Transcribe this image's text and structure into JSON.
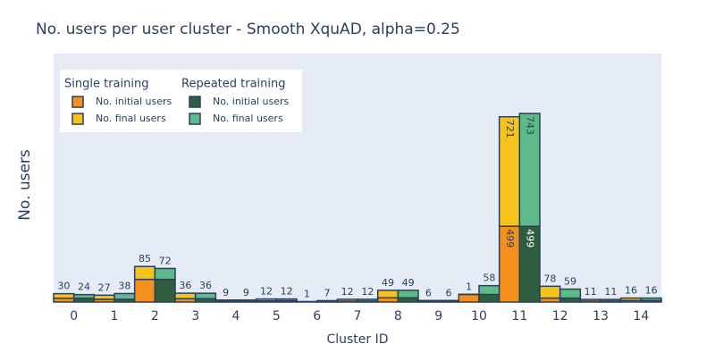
{
  "chart_data": {
    "type": "bar",
    "title": "No. users per user cluster - Smooth XquAD, alpha=0.25",
    "x_label": "Cluster ID",
    "y_label": "No. users",
    "categories": [
      "0",
      "1",
      "2",
      "3",
      "4",
      "5",
      "6",
      "7",
      "8",
      "9",
      "10",
      "11",
      "12",
      "13",
      "14"
    ],
    "legend_groups": [
      "Single training",
      "Repeated training"
    ],
    "series": [
      {
        "name": "No. initial users",
        "color": "#f4901e",
        "stack": 0,
        "values": [
          25,
          18,
          149,
          22,
          4,
          8,
          2,
          6,
          28,
          4,
          50,
          499,
          26,
          6,
          10
        ]
      },
      {
        "name": "No. final users",
        "color": "#f6c21c",
        "stack": 0,
        "values": [
          30,
          27,
          85,
          36,
          9,
          12,
          1,
          12,
          49,
          6,
          1,
          721,
          78,
          11,
          16
        ]
      },
      {
        "name": "No. initial users",
        "color": "#2e5e3f",
        "stack": 1,
        "values": [
          25,
          18,
          149,
          22,
          4,
          8,
          2,
          6,
          28,
          4,
          50,
          499,
          26,
          6,
          10
        ]
      },
      {
        "name": "No. final users",
        "color": "#5fba8a",
        "stack": 1,
        "values": [
          24,
          38,
          72,
          36,
          9,
          12,
          7,
          12,
          49,
          6,
          58,
          743,
          59,
          11,
          16
        ]
      }
    ],
    "ylim": [
      0,
      1636
    ],
    "grid": false
  }
}
